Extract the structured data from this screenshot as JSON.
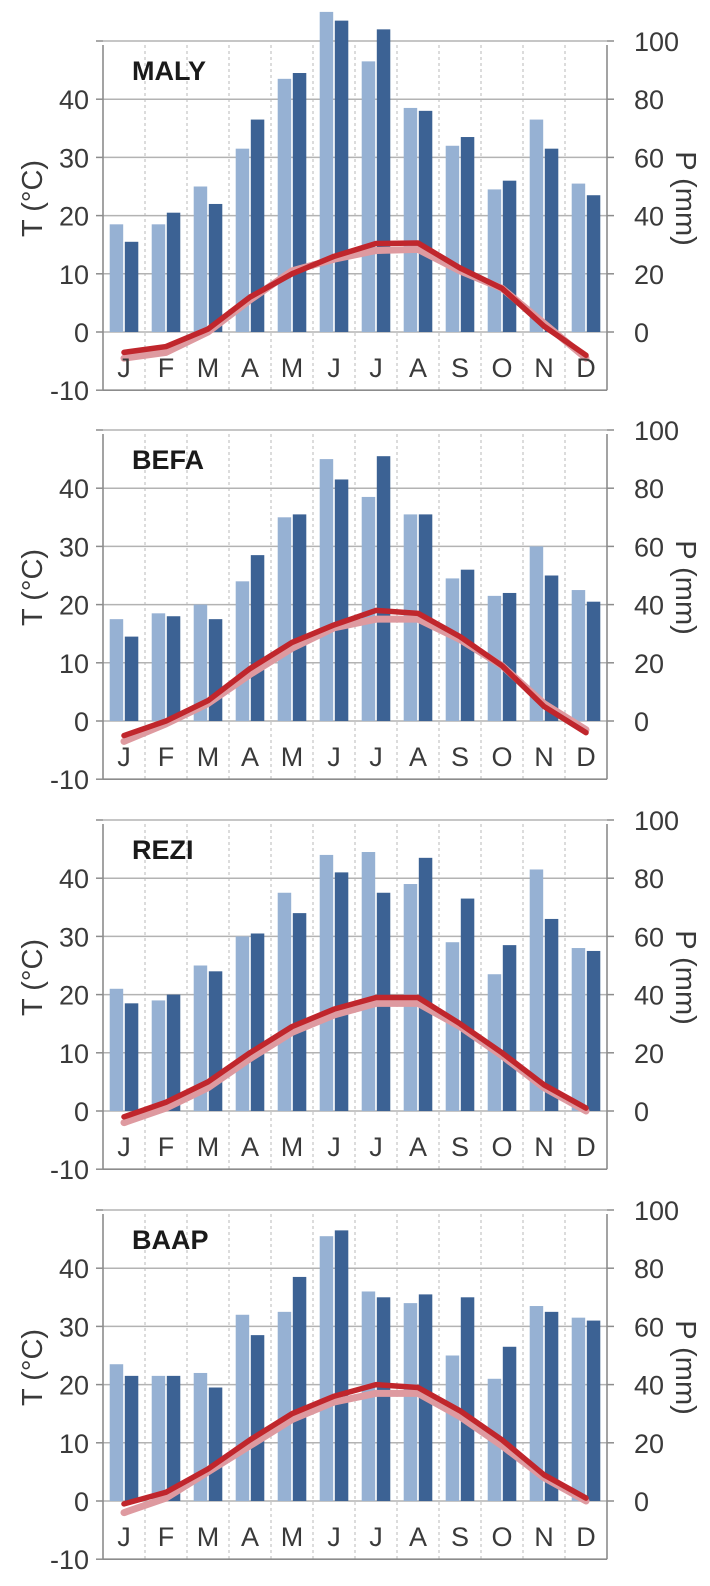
{
  "colors": {
    "precip_light": "#96b1d3",
    "precip_dark": "#3c6294",
    "temp_light": "#de9aa0",
    "temp_dark": "#c0262c",
    "axis": "#8c8c8c",
    "grid_h": "#b3b3b3",
    "grid_v": "#c4c4c4"
  },
  "chart_data": [
    {
      "type": "bar",
      "title": "MALY",
      "categories": [
        "J",
        "F",
        "M",
        "A",
        "M",
        "J",
        "J",
        "A",
        "S",
        "O",
        "N",
        "D"
      ],
      "ylabel": "T (°C)",
      "y2label": "P (mm)",
      "ylim": [
        -10,
        50
      ],
      "y2lim": [
        -20,
        100
      ],
      "yticks": [
        -10,
        0,
        10,
        20,
        30,
        40
      ],
      "y2ticks": [
        0,
        20,
        40,
        60,
        80,
        100
      ],
      "grid": true,
      "series": [
        {
          "type": "bar",
          "axis": "right",
          "color_key": "precip_light",
          "values": [
            37,
            37,
            50,
            63,
            87,
            110,
            93,
            77,
            64,
            49,
            73,
            51
          ]
        },
        {
          "type": "bar",
          "axis": "right",
          "color_key": "precip_dark",
          "values": [
            31,
            41,
            44,
            73,
            89,
            107,
            104,
            76,
            67,
            52,
            63,
            47
          ]
        },
        {
          "type": "line",
          "axis": "left",
          "color_key": "temp_light",
          "values": [
            -4.5,
            -3.5,
            0.0,
            5.5,
            10.5,
            12.5,
            14.0,
            14.2,
            10.5,
            7.5,
            1.5,
            -4.5
          ]
        },
        {
          "type": "line",
          "axis": "left",
          "color_key": "temp_dark",
          "values": [
            -3.5,
            -2.5,
            0.5,
            6.0,
            10.0,
            13.0,
            15.2,
            15.3,
            11.0,
            7.5,
            1.0,
            -4.0
          ]
        }
      ]
    },
    {
      "type": "bar",
      "title": "BEFA",
      "categories": [
        "J",
        "F",
        "M",
        "A",
        "M",
        "J",
        "J",
        "A",
        "S",
        "O",
        "N",
        "D"
      ],
      "ylabel": "T (°C)",
      "y2label": "P (mm)",
      "ylim": [
        -10,
        50
      ],
      "y2lim": [
        -20,
        100
      ],
      "yticks": [
        -10,
        0,
        10,
        20,
        30,
        40
      ],
      "y2ticks": [
        0,
        20,
        40,
        60,
        80,
        100
      ],
      "grid": true,
      "series": [
        {
          "type": "bar",
          "axis": "right",
          "color_key": "precip_light",
          "values": [
            35,
            37,
            40,
            48,
            70,
            90,
            77,
            71,
            49,
            43,
            60,
            45
          ]
        },
        {
          "type": "bar",
          "axis": "right",
          "color_key": "precip_dark",
          "values": [
            29,
            36,
            35,
            57,
            71,
            83,
            91,
            71,
            52,
            44,
            50,
            41
          ]
        },
        {
          "type": "line",
          "axis": "left",
          "color_key": "temp_light",
          "values": [
            -3.5,
            -0.5,
            3.0,
            8.0,
            12.5,
            16.0,
            17.5,
            17.5,
            14.0,
            9.5,
            3.0,
            -1.5
          ]
        },
        {
          "type": "line",
          "axis": "left",
          "color_key": "temp_dark",
          "values": [
            -2.5,
            0.0,
            3.5,
            9.0,
            13.5,
            16.5,
            19.0,
            18.5,
            14.5,
            9.5,
            2.5,
            -2.0
          ]
        }
      ]
    },
    {
      "type": "bar",
      "title": "REZI",
      "categories": [
        "J",
        "F",
        "M",
        "A",
        "M",
        "J",
        "J",
        "A",
        "S",
        "O",
        "N",
        "D"
      ],
      "ylabel": "T (°C)",
      "y2label": "P (mm)",
      "ylim": [
        -10,
        50
      ],
      "y2lim": [
        -20,
        100
      ],
      "yticks": [
        -10,
        0,
        10,
        20,
        30,
        40
      ],
      "y2ticks": [
        0,
        20,
        40,
        60,
        80,
        100
      ],
      "grid": true,
      "series": [
        {
          "type": "bar",
          "axis": "right",
          "color_key": "precip_light",
          "values": [
            42,
            38,
            50,
            60,
            75,
            88,
            89,
            78,
            58,
            47,
            83,
            56
          ]
        },
        {
          "type": "bar",
          "axis": "right",
          "color_key": "precip_dark",
          "values": [
            37,
            40,
            48,
            61,
            68,
            82,
            75,
            87,
            73,
            57,
            66,
            55
          ]
        },
        {
          "type": "line",
          "axis": "left",
          "color_key": "temp_light",
          "values": [
            -2.0,
            0.5,
            4.0,
            9.0,
            13.5,
            16.5,
            18.5,
            18.5,
            14.5,
            9.5,
            4.0,
            0.0
          ]
        },
        {
          "type": "line",
          "axis": "left",
          "color_key": "temp_dark",
          "values": [
            -1.0,
            1.5,
            5.0,
            10.0,
            14.5,
            17.5,
            19.5,
            19.5,
            15.0,
            10.0,
            4.5,
            0.5
          ]
        }
      ]
    },
    {
      "type": "bar",
      "title": "BAAP",
      "categories": [
        "J",
        "F",
        "M",
        "A",
        "M",
        "J",
        "J",
        "A",
        "S",
        "O",
        "N",
        "D"
      ],
      "ylabel": "T (°C)",
      "y2label": "P (mm)",
      "ylim": [
        -10,
        50
      ],
      "y2lim": [
        -20,
        100
      ],
      "yticks": [
        -10,
        0,
        10,
        20,
        30,
        40
      ],
      "y2ticks": [
        0,
        20,
        40,
        60,
        80,
        100
      ],
      "grid": true,
      "series": [
        {
          "type": "bar",
          "axis": "right",
          "color_key": "precip_light",
          "values": [
            47,
            43,
            44,
            64,
            65,
            91,
            72,
            68,
            50,
            42,
            67,
            63
          ]
        },
        {
          "type": "bar",
          "axis": "right",
          "color_key": "precip_dark",
          "values": [
            43,
            43,
            39,
            57,
            77,
            93,
            70,
            71,
            70,
            53,
            65,
            62
          ]
        },
        {
          "type": "line",
          "axis": "left",
          "color_key": "temp_light",
          "values": [
            -2.0,
            0.5,
            5.0,
            9.5,
            14.0,
            17.0,
            18.5,
            18.5,
            14.5,
            9.5,
            4.0,
            0.0
          ]
        },
        {
          "type": "line",
          "axis": "left",
          "color_key": "temp_dark",
          "values": [
            -0.5,
            1.5,
            5.5,
            10.5,
            15.0,
            18.0,
            20.0,
            19.5,
            15.5,
            10.5,
            4.5,
            0.5
          ]
        }
      ]
    }
  ]
}
